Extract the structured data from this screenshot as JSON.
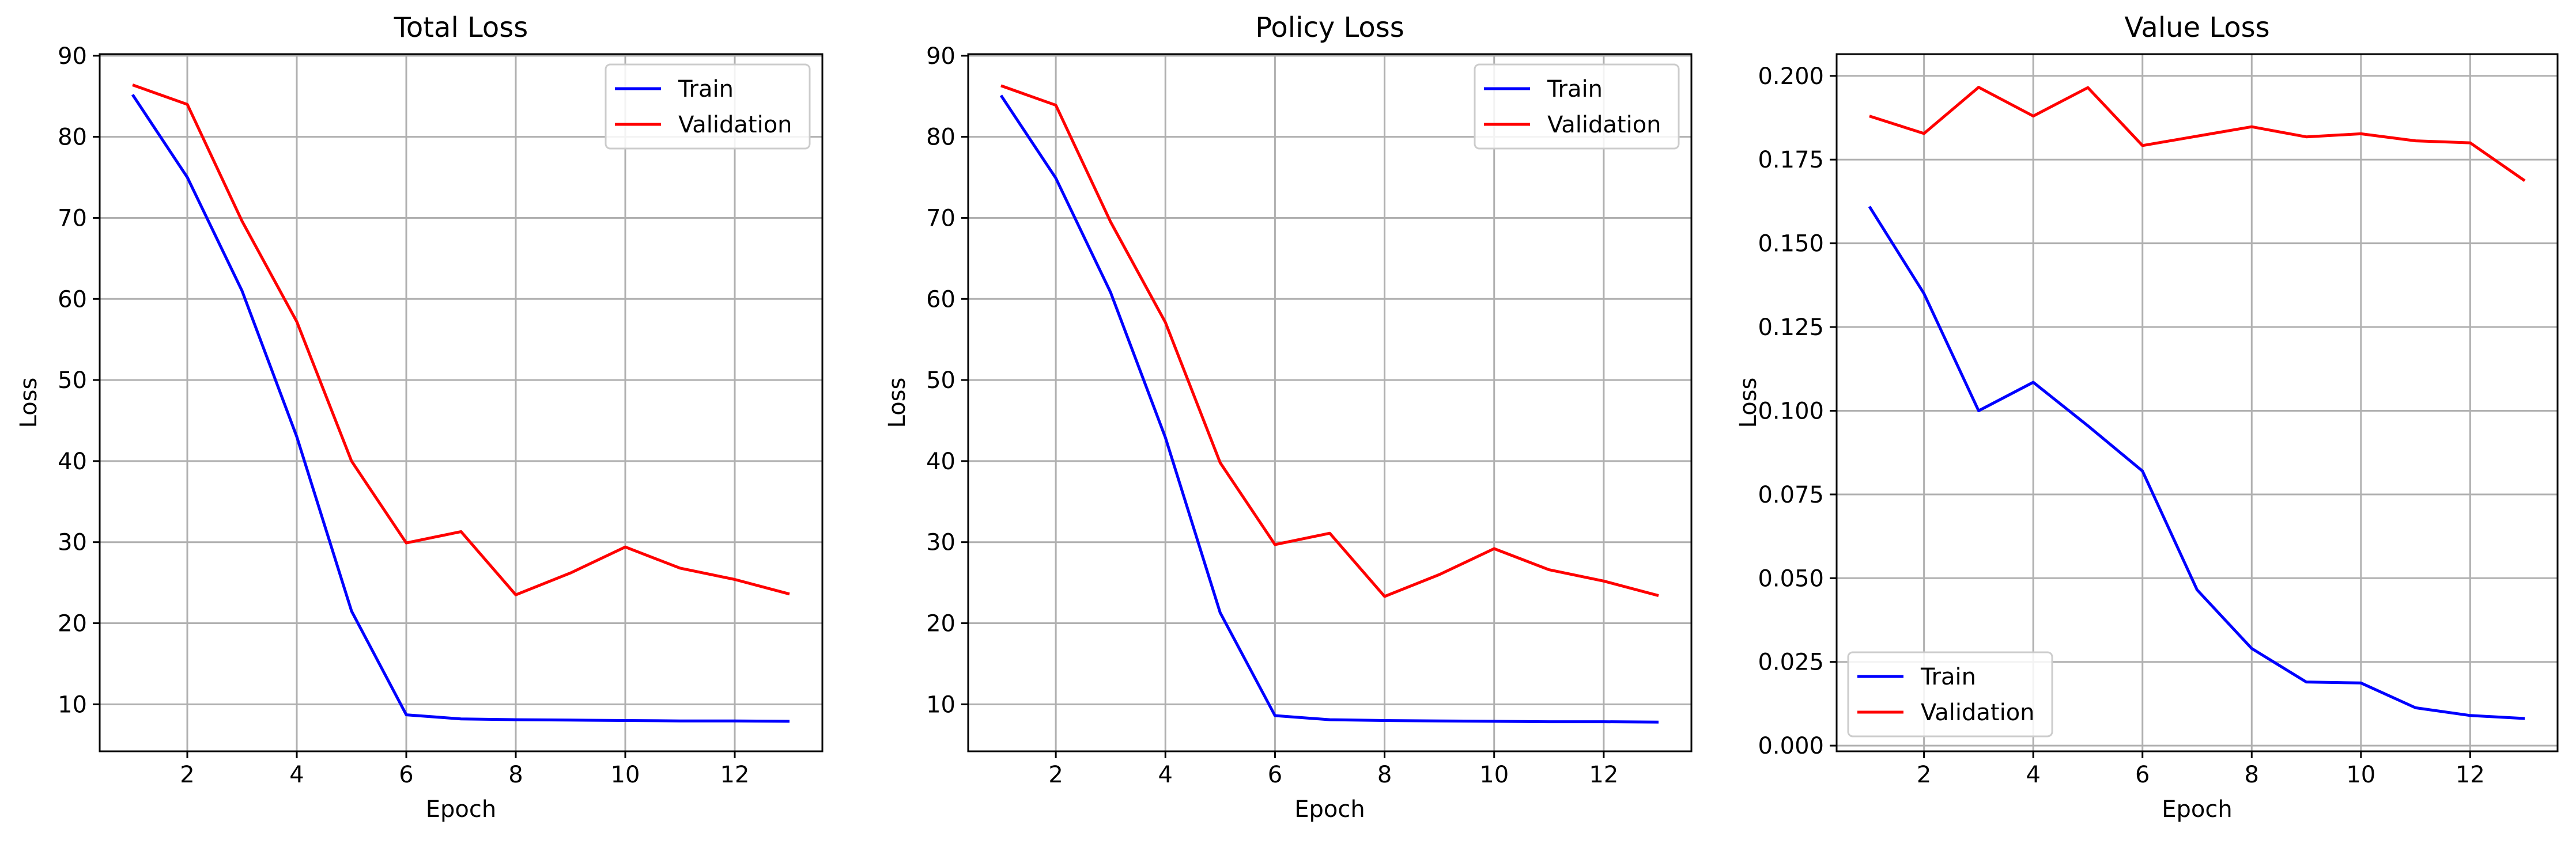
{
  "chart_data": [
    {
      "type": "line",
      "title": "Total Loss",
      "xlabel": "Epoch",
      "ylabel": "Loss",
      "xlim": [
        0.4,
        13.6
      ],
      "ylim": [
        4.2,
        90.2
      ],
      "xticks": [
        2,
        4,
        6,
        8,
        10,
        12
      ],
      "yticks": [
        10,
        20,
        30,
        40,
        50,
        60,
        70,
        80,
        90
      ],
      "ytick_labels": [
        "10",
        "20",
        "30",
        "40",
        "50",
        "60",
        "70",
        "80",
        "90"
      ],
      "grid": true,
      "legend_position": "upper right",
      "x": [
        1,
        2,
        3,
        4,
        5,
        6,
        7,
        8,
        9,
        10,
        11,
        12,
        13
      ],
      "series": [
        {
          "name": "Train",
          "color": "#0000ff",
          "values": [
            85.2,
            75.0,
            61.0,
            43.0,
            21.5,
            8.7,
            8.2,
            8.1,
            8.05,
            8.0,
            7.95,
            7.95,
            7.9
          ]
        },
        {
          "name": "Validation",
          "color": "#ff0000",
          "values": [
            86.4,
            84.0,
            69.6,
            57.2,
            40.0,
            29.9,
            31.3,
            23.5,
            26.2,
            29.4,
            26.8,
            25.4,
            23.6
          ]
        }
      ]
    },
    {
      "type": "line",
      "title": "Policy Loss",
      "xlabel": "Epoch",
      "ylabel": "Loss",
      "xlim": [
        0.4,
        13.6
      ],
      "ylim": [
        4.2,
        90.2
      ],
      "xticks": [
        2,
        4,
        6,
        8,
        10,
        12
      ],
      "yticks": [
        10,
        20,
        30,
        40,
        50,
        60,
        70,
        80,
        90
      ],
      "ytick_labels": [
        "10",
        "20",
        "30",
        "40",
        "50",
        "60",
        "70",
        "80",
        "90"
      ],
      "grid": true,
      "legend_position": "upper right",
      "x": [
        1,
        2,
        3,
        4,
        5,
        6,
        7,
        8,
        9,
        10,
        11,
        12,
        13
      ],
      "series": [
        {
          "name": "Train",
          "color": "#0000ff",
          "values": [
            85.1,
            74.9,
            60.8,
            42.9,
            21.3,
            8.6,
            8.1,
            8.0,
            7.95,
            7.9,
            7.85,
            7.85,
            7.8
          ]
        },
        {
          "name": "Validation",
          "color": "#ff0000",
          "values": [
            86.3,
            83.9,
            69.5,
            57.1,
            39.8,
            29.7,
            31.1,
            23.3,
            26.0,
            29.2,
            26.6,
            25.2,
            23.4
          ]
        }
      ]
    },
    {
      "type": "line",
      "title": "Value Loss",
      "xlabel": "Epoch",
      "ylabel": "Loss",
      "xlim": [
        0.4,
        13.6
      ],
      "ylim": [
        -0.0017,
        0.2065
      ],
      "xticks": [
        2,
        4,
        6,
        8,
        10,
        12
      ],
      "yticks": [
        0.0,
        0.025,
        0.05,
        0.075,
        0.1,
        0.125,
        0.15,
        0.175,
        0.2
      ],
      "ytick_labels": [
        "0.000",
        "0.025",
        "0.050",
        "0.075",
        "0.100",
        "0.125",
        "0.150",
        "0.175",
        "0.200"
      ],
      "grid": true,
      "legend_position": "lower left",
      "x": [
        1,
        2,
        3,
        4,
        5,
        6,
        7,
        8,
        9,
        10,
        11,
        12,
        13
      ],
      "series": [
        {
          "name": "Train",
          "color": "#0000ff",
          "values": [
            0.161,
            0.135,
            0.1,
            0.1085,
            0.0955,
            0.082,
            0.0465,
            0.029,
            0.019,
            0.0187,
            0.0113,
            0.009,
            0.0081
          ]
        },
        {
          "name": "Validation",
          "color": "#ff0000",
          "values": [
            0.188,
            0.1828,
            0.1966,
            0.188,
            0.1965,
            0.1792,
            0.182,
            0.1848,
            0.1818,
            0.1827,
            0.1806,
            0.18,
            0.1687
          ]
        }
      ]
    }
  ]
}
